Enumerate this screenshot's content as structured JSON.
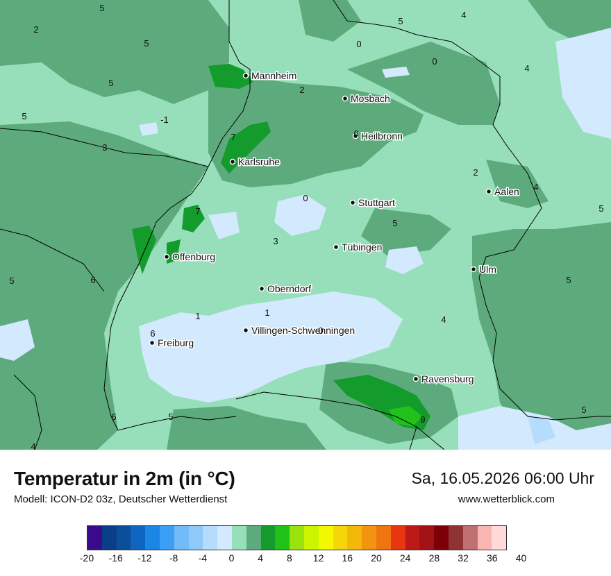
{
  "map": {
    "cities": [
      {
        "name": "Mannheim"
      },
      {
        "name": "Mosbach"
      },
      {
        "name": "Heilbronn"
      },
      {
        "name": "Karlsruhe"
      },
      {
        "name": "Stuttgart"
      },
      {
        "name": "Aalen"
      },
      {
        "name": "Tübingen"
      },
      {
        "name": "Offenburg"
      },
      {
        "name": "Ulm"
      },
      {
        "name": "Oberndorf"
      },
      {
        "name": "Villingen-Schwenningen"
      },
      {
        "name": "Freiburg"
      },
      {
        "name": "Ravensburg"
      }
    ],
    "values": [
      "5",
      "2",
      "5",
      "5",
      "5",
      "-1",
      "3",
      "0",
      "5",
      "0",
      "4",
      "4",
      "2",
      "7",
      "6",
      "2",
      "4",
      "5",
      "0",
      "3",
      "5",
      "7",
      "5",
      "6",
      "1",
      "1",
      "0",
      "6",
      "4",
      "5",
      "6",
      "5",
      "9",
      "4",
      "5"
    ]
  },
  "header": {
    "title": "Temperatur in 2m (in °C)",
    "model": "Modell: ICON-D2 03z, Deutscher Wetterdienst",
    "datetime": "Sa, 16.05.2026 06:00 Uhr",
    "website": "www.wetterblick.com"
  },
  "legend": {
    "colors": [
      "#3a0a8c",
      "#083f86",
      "#0b4f9c",
      "#0f65c0",
      "#1a86e6",
      "#3aa0f5",
      "#72bbf9",
      "#8fc8fb",
      "#b5dcfd",
      "#d3e9fd",
      "#97dfba",
      "#5dab7d",
      "#139b2c",
      "#20c119",
      "#9ae20e",
      "#ccf400",
      "#f3f700",
      "#f5d60a",
      "#f3b80a",
      "#f39410",
      "#f07510",
      "#e83610",
      "#bb1a16",
      "#a21216",
      "#7d0008",
      "#8e3333",
      "#c07070",
      "#f9b5b2",
      "#ffdada"
    ],
    "tick_labels": [
      "-20",
      "-16",
      "-12",
      "-8",
      "-4",
      "0",
      "4",
      "8",
      "12",
      "16",
      "20",
      "24",
      "28",
      "32",
      "36",
      "40"
    ]
  }
}
